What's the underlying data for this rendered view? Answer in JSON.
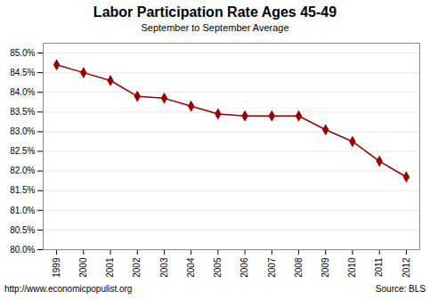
{
  "chart_data": {
    "type": "line",
    "title": "Labor Participation Rate Ages 45-49",
    "subtitle": "September to September Average",
    "annotations": [
      "http://www.economicpopulist.org",
      "Source:  BLS"
    ],
    "x": [
      1999,
      2000,
      2001,
      2002,
      2003,
      2004,
      2005,
      2006,
      2007,
      2008,
      2009,
      2010,
      2011,
      2012
    ],
    "values": [
      84.7,
      84.5,
      84.3,
      83.9,
      83.85,
      83.65,
      83.45,
      83.4,
      83.4,
      83.4,
      83.05,
      82.75,
      82.25,
      81.85
    ],
    "color": "#990000",
    "marker": "diamond",
    "xlim": [
      1998.5,
      2012.5
    ],
    "xticks": [
      1999,
      2000,
      2001,
      2002,
      2003,
      2004,
      2005,
      2006,
      2007,
      2008,
      2009,
      2010,
      2011,
      2012
    ],
    "ylim": [
      80.0,
      85.25
    ],
    "yticks": [
      {
        "value": 80.0,
        "label": "80.0%"
      },
      {
        "value": 80.5,
        "label": "80.5%"
      },
      {
        "value": 81.0,
        "label": "81.0%"
      },
      {
        "value": 81.5,
        "label": "81.5%"
      },
      {
        "value": 82.0,
        "label": "82.0%"
      },
      {
        "value": 82.5,
        "label": "82.5%"
      },
      {
        "value": 83.0,
        "label": "83.0%"
      },
      {
        "value": 83.5,
        "label": "83.5%"
      },
      {
        "value": 84.0,
        "label": "84.0%"
      },
      {
        "value": 84.5,
        "label": "84.5%"
      },
      {
        "value": 85.0,
        "label": "85.0%"
      }
    ],
    "grid": "y"
  }
}
